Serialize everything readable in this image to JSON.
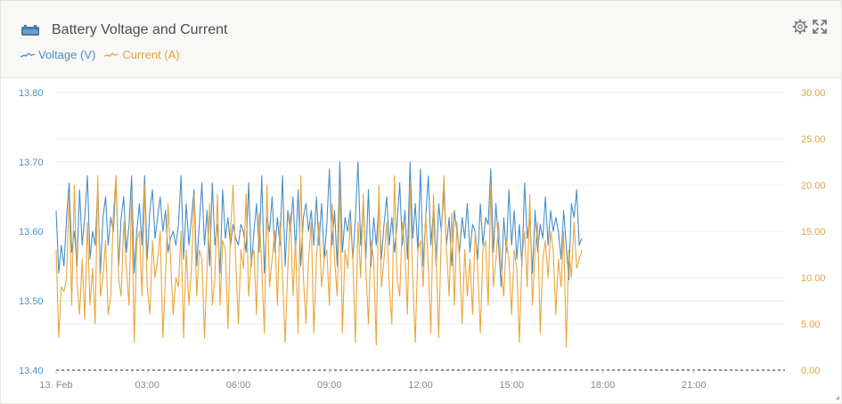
{
  "widget": {
    "title": "Battery Voltage and Current",
    "icons": {
      "title_icon": "battery-icon",
      "settings": "gear-icon",
      "expand": "fullscreen-icon"
    }
  },
  "colors": {
    "voltage": "#4a8fc6",
    "current": "#eaa63b",
    "grid": "#e8e8e8",
    "axis_text_left": "#4a8fc6",
    "axis_text_right": "#e2a23c"
  },
  "legend": [
    {
      "label": "Voltage (V)",
      "color": "#4a8fc6"
    },
    {
      "label": "Current (A)",
      "color": "#eaa63b"
    }
  ],
  "chart_data": {
    "type": "line",
    "x_axis": {
      "labels": [
        "13. Feb",
        "03:00",
        "06:00",
        "09:00",
        "12:00",
        "15:00",
        "18:00",
        "21:00"
      ],
      "range_hours": [
        0,
        24
      ]
    },
    "y_left": {
      "label_unit": "V",
      "ticks": [
        "13.80",
        "13.70",
        "13.60",
        "13.50",
        "13.40"
      ],
      "range": [
        13.4,
        13.8
      ]
    },
    "y_right": {
      "label_unit": "A",
      "ticks": [
        "30.00",
        "25.00",
        "20.00",
        "15.00",
        "10.00",
        "5.00",
        "0.00"
      ],
      "range": [
        0,
        30
      ]
    },
    "grid": true,
    "series": [
      {
        "name": "Voltage (V)",
        "axis": "left",
        "x_start_hours": 0,
        "x_step_hours": 0.0857,
        "values": [
          13.63,
          13.54,
          13.58,
          13.55,
          13.62,
          13.67,
          13.57,
          13.6,
          13.55,
          13.66,
          13.58,
          13.62,
          13.68,
          13.56,
          13.6,
          13.58,
          13.66,
          13.54,
          13.62,
          13.65,
          13.58,
          13.62,
          13.6,
          13.68,
          13.55,
          13.62,
          13.65,
          13.57,
          13.61,
          13.68,
          13.54,
          13.6,
          13.64,
          13.58,
          13.68,
          13.56,
          13.63,
          13.66,
          13.59,
          13.62,
          13.65,
          13.6,
          13.63,
          13.57,
          13.59,
          13.6,
          13.58,
          13.61,
          13.68,
          13.56,
          13.64,
          13.58,
          13.62,
          13.66,
          13.55,
          13.61,
          13.67,
          13.58,
          13.63,
          13.55,
          13.67,
          13.58,
          13.61,
          13.54,
          13.66,
          13.59,
          13.62,
          13.58,
          13.61,
          13.59,
          13.58,
          13.61,
          13.6,
          13.57,
          13.67,
          13.55,
          13.6,
          13.64,
          13.57,
          13.68,
          13.54,
          13.62,
          13.6,
          13.65,
          13.57,
          13.62,
          13.58,
          13.68,
          13.55,
          13.63,
          13.6,
          13.65,
          13.57,
          13.66,
          13.55,
          13.62,
          13.64,
          13.6,
          13.63,
          13.58,
          13.65,
          13.58,
          13.64,
          13.56,
          13.61,
          13.69,
          13.58,
          13.63,
          13.55,
          13.7,
          13.57,
          13.62,
          13.6,
          13.63,
          13.56,
          13.62,
          13.7,
          13.58,
          13.64,
          13.56,
          13.66,
          13.55,
          13.62,
          13.58,
          13.64,
          13.56,
          13.61,
          13.65,
          13.58,
          13.62,
          13.57,
          13.61,
          13.67,
          13.58,
          13.63,
          13.56,
          13.7,
          13.59,
          13.64,
          13.57,
          13.69,
          13.55,
          13.62,
          13.68,
          13.58,
          13.63,
          13.55,
          13.64,
          13.6,
          13.66,
          13.58,
          13.62,
          13.55,
          13.63,
          13.6,
          13.57,
          13.62,
          13.59,
          13.64,
          13.57,
          13.61,
          13.6,
          13.56,
          13.64,
          13.58,
          13.62,
          13.61,
          13.69,
          13.57,
          13.64,
          13.58,
          13.52,
          13.62,
          13.57,
          13.66,
          13.58,
          13.63,
          13.56,
          13.61,
          13.55,
          13.67,
          13.59,
          13.62,
          13.54,
          13.63,
          13.57,
          13.61,
          13.59,
          13.65,
          13.58,
          13.63,
          13.6,
          13.62,
          13.6,
          13.56,
          13.63,
          13.58,
          13.53,
          13.64,
          13.62,
          13.66,
          13.58,
          13.59
        ]
      },
      {
        "name": "Current (A)",
        "axis": "right",
        "x_start_hours": 0,
        "x_step_hours": 0.0857,
        "values": [
          13,
          3.5,
          9,
          8.5,
          10,
          19,
          7,
          20,
          9.5,
          6,
          12,
          5.5,
          16,
          7,
          11,
          5,
          21,
          8,
          10,
          14,
          6,
          8,
          17,
          21,
          10,
          8,
          16,
          11,
          7,
          19,
          3,
          14,
          15,
          8,
          20,
          9,
          6,
          14,
          10,
          12,
          15,
          3.5,
          10,
          18,
          12,
          6,
          10,
          9,
          15,
          3.5,
          13,
          7,
          11,
          19,
          8,
          13,
          12,
          3.5,
          11,
          18,
          7,
          10,
          19,
          7,
          14,
          13,
          4.5,
          15,
          20,
          12,
          5,
          13,
          11,
          19,
          8,
          12,
          13,
          6,
          17,
          11,
          4,
          20,
          9,
          12,
          15,
          7,
          16,
          10,
          3,
          11,
          17,
          8,
          14,
          4,
          21,
          10,
          5,
          12,
          16,
          4,
          12,
          16,
          9,
          12,
          13,
          7,
          18,
          12,
          8,
          20,
          4,
          13,
          11,
          16,
          12,
          3,
          16,
          10,
          19,
          11,
          5,
          14,
          12,
          2.7,
          20,
          9,
          12,
          16,
          9,
          5,
          21,
          10,
          8,
          16,
          13,
          6,
          20,
          10,
          3,
          13,
          14,
          9,
          17,
          11,
          4,
          19,
          12,
          3.5,
          15,
          21,
          13,
          8,
          17,
          7,
          16,
          12,
          5,
          13,
          8,
          12,
          6,
          15,
          11,
          4,
          13,
          14,
          7,
          20,
          9,
          12,
          16,
          11,
          8,
          14,
          12,
          6,
          13,
          11,
          3,
          12,
          15,
          9,
          19,
          7,
          13,
          16,
          4,
          12,
          14,
          10,
          15,
          13,
          6,
          12,
          9,
          15,
          2.5,
          13,
          10,
          16,
          11,
          12,
          13
        ]
      }
    ]
  }
}
